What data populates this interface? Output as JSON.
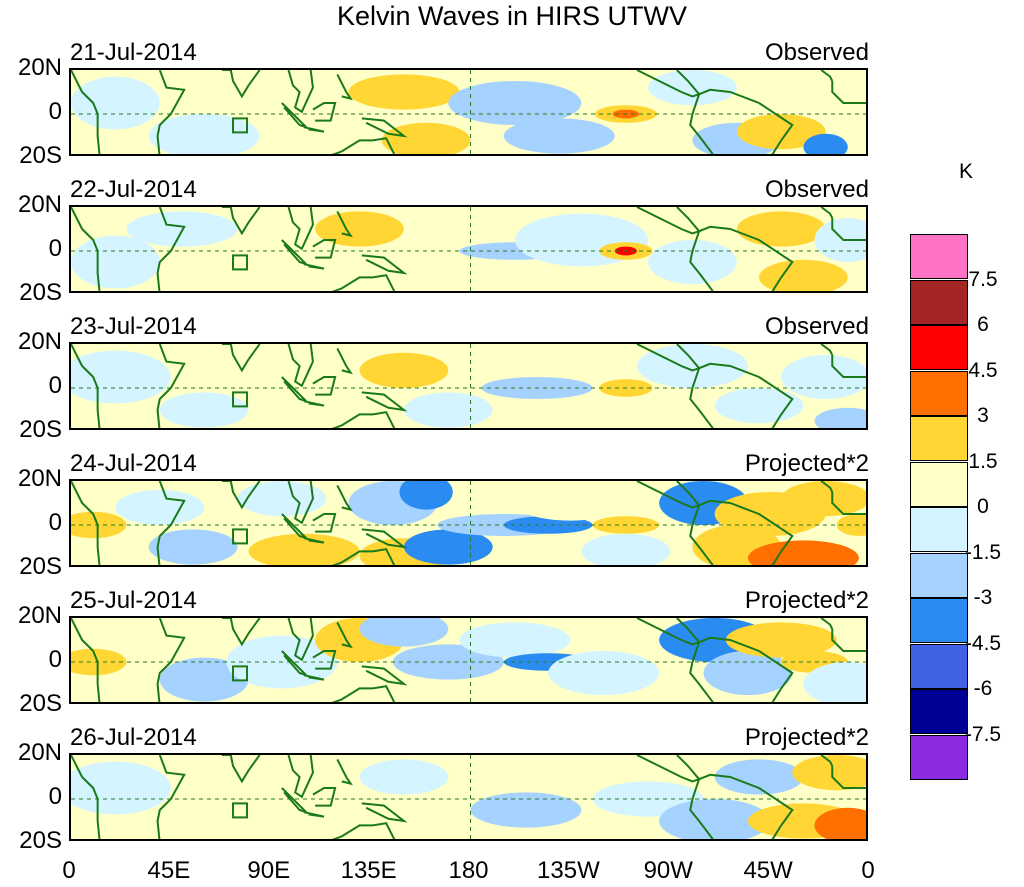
{
  "title": "Kelvin Waves in HIRS UTWV",
  "chart_data": {
    "type": "heatmap",
    "title": "Kelvin Waves in HIRS UTWV",
    "x_ticks": [
      "0",
      "45E",
      "90E",
      "135E",
      "180",
      "135W",
      "90W",
      "45W",
      "0"
    ],
    "y_ticks": [
      "20N",
      "0",
      "20S"
    ],
    "xlim": [
      0,
      360
    ],
    "ylim": [
      -20,
      20
    ],
    "colorbar": {
      "unit": "K",
      "levels": [
        "7.5",
        "6",
        "4.5",
        "3",
        "1.5",
        "0",
        "-1.5",
        "-3",
        "-4.5",
        "-6",
        "-7.5"
      ],
      "colors": [
        "#ff73c7",
        "#a52424",
        "#ff0000",
        "#ff7000",
        "#ffd633",
        "#ffffc8",
        "#d4f4ff",
        "#a6d2ff",
        "#2a8cf0",
        "#4262e6",
        "#000096",
        "#8a2be2"
      ]
    },
    "panels": [
      {
        "date": "21-Jul-2014",
        "label": "Observed"
      },
      {
        "date": "22-Jul-2014",
        "label": "Observed"
      },
      {
        "date": "23-Jul-2014",
        "label": "Observed"
      },
      {
        "date": "24-Jul-2014",
        "label": "Projected*2"
      },
      {
        "date": "25-Jul-2014",
        "label": "Projected*2"
      },
      {
        "date": "26-Jul-2014",
        "label": "Projected*2"
      }
    ]
  }
}
